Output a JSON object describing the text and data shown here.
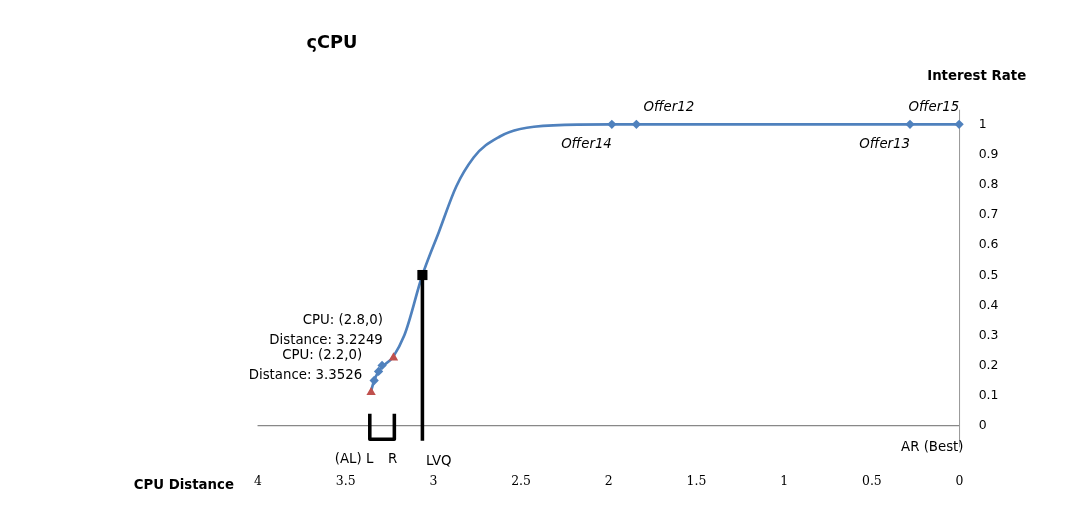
{
  "chart_data": {
    "type": "line",
    "title": "ςCPU",
    "xlabel": "CPU Distance",
    "ylabel": "Interest Rate",
    "xlim": [
      4,
      0
    ],
    "ylim": [
      -0.07,
      1.05
    ],
    "xticks": [
      4,
      3.5,
      3,
      2.5,
      2,
      1.5,
      1,
      0.5,
      0
    ],
    "yticks": [
      0,
      0.1,
      0.2,
      0.3,
      0.4,
      0.5,
      0.6,
      0.7,
      0.8,
      0.9,
      1
    ],
    "grid": false,
    "series": [
      {
        "marker": "none",
        "color": "#4f81bd",
        "x": [
          3.3526,
          3.335,
          3.31,
          3.2249,
          3.163,
          3.06,
          2.966,
          2.867,
          2.768,
          2.621,
          2.424,
          2.177,
          1.98,
          1.84,
          0.28,
          0
        ],
        "values": [
          0.115,
          0.15,
          0.18,
          0.23,
          0.3,
          0.5,
          0.643,
          0.794,
          0.89,
          0.959,
          0.992,
          0.999,
          1,
          1,
          1,
          1
        ]
      },
      {
        "type": "scatter",
        "marker": "diamond",
        "color": "#4f81bd",
        "x": [
          3.335,
          3.31,
          3.29,
          1.98,
          1.84,
          0.28,
          0
        ],
        "values": [
          0.15,
          0.18,
          0.2,
          1,
          1,
          1,
          1
        ]
      },
      {
        "type": "scatter",
        "marker": "triangle",
        "color": "#c0504d",
        "x": [
          3.3526,
          3.2249
        ],
        "values": [
          0.115,
          0.23
        ]
      },
      {
        "marker": "none",
        "color": "#000000",
        "x": [
          3.06,
          3.06
        ],
        "values": [
          -0.05,
          0.5
        ]
      },
      {
        "marker": "none",
        "color": "#000000",
        "x": [
          3.36,
          3.36,
          3.22,
          3.22
        ],
        "values": [
          0.04,
          -0.045,
          -0.045,
          0.04
        ]
      },
      {
        "type": "scatter",
        "marker": "square",
        "color": "#000000",
        "x": [
          3.06
        ],
        "values": [
          0.5
        ]
      }
    ],
    "ref_lines": [
      {
        "axis": "y",
        "value": 0,
        "color": "#888888"
      }
    ],
    "annotations": [
      {
        "text": "Offer14",
        "x": 1.98,
        "y": 1
      },
      {
        "text": "Offer12",
        "x": 1.84,
        "y": 1
      },
      {
        "text": "Offer13",
        "x": 0.28,
        "y": 1
      },
      {
        "text": "Offer15",
        "x": 0,
        "y": 1
      },
      {
        "text": "CPU: (2.8,0)\nDistance: 3.2249",
        "x": 3.2249,
        "y": 0.23
      },
      {
        "text": "CPU: (2.2,0)\nDistance: 3.3526",
        "x": 3.3526,
        "y": 0.115
      },
      {
        "text": "(AL) L",
        "x": 3.36,
        "y": -0.045
      },
      {
        "text": "R",
        "x": 3.22,
        "y": -0.045
      },
      {
        "text": "LVQ",
        "x": 3.06,
        "y": -0.05
      },
      {
        "text": "AR (Best)",
        "x": 0,
        "y": 0
      }
    ]
  }
}
